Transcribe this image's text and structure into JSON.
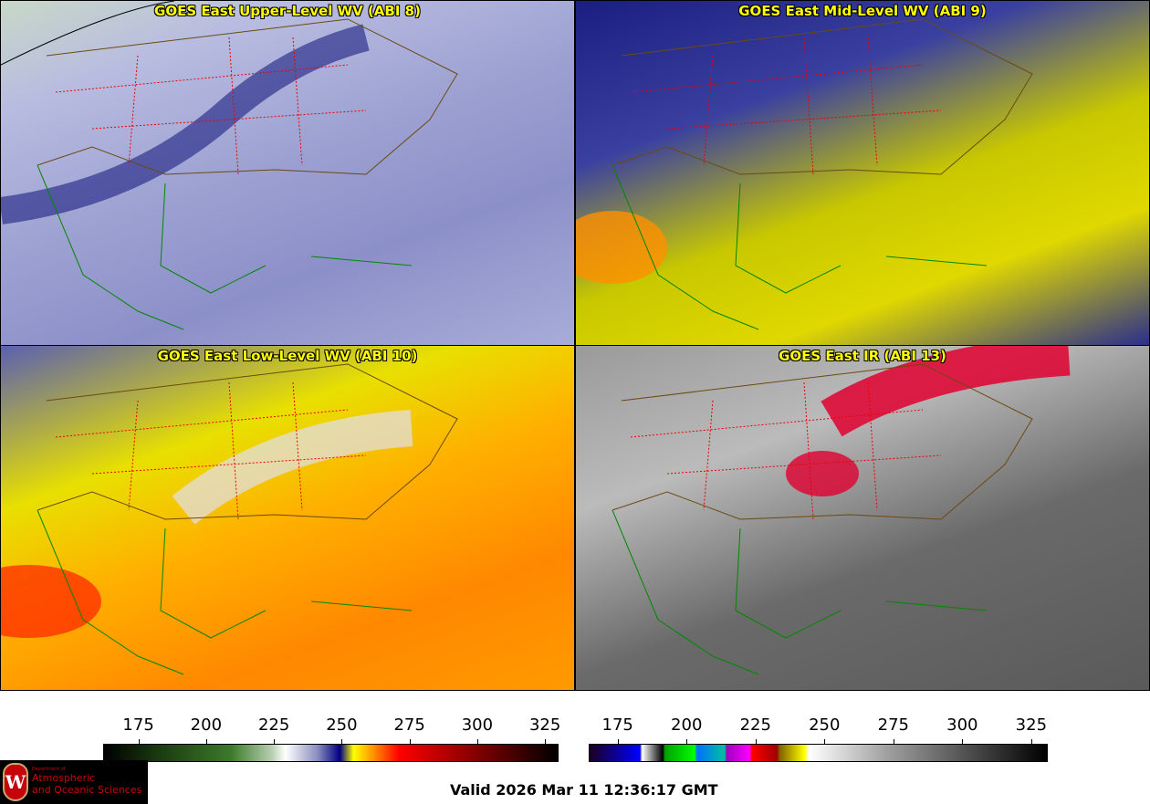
{
  "panels": [
    {
      "title": "GOES East Upper-Level WV (ABI 8)"
    },
    {
      "title": "GOES East Mid-Level WV (ABI 9)"
    },
    {
      "title": "GOES East Low-Level WV (ABI 10)"
    },
    {
      "title": "GOES East IR (ABI 13)"
    }
  ],
  "colorbars": [
    {
      "name": "water-vapor",
      "ticks": [
        "175",
        "200",
        "225",
        "250",
        "275",
        "300",
        "325"
      ],
      "range": [
        162,
        330
      ]
    },
    {
      "name": "infrared",
      "ticks": [
        "175",
        "200",
        "225",
        "250",
        "275",
        "300",
        "325"
      ],
      "range": [
        164.5,
        331
      ]
    }
  ],
  "logo": {
    "line1": "Department of",
    "line2": "Atmospheric",
    "line3": "and Oceanic Sciences",
    "shield_letter": "W"
  },
  "valid": "Valid 2026 Mar 11 12:36:17 GMT"
}
